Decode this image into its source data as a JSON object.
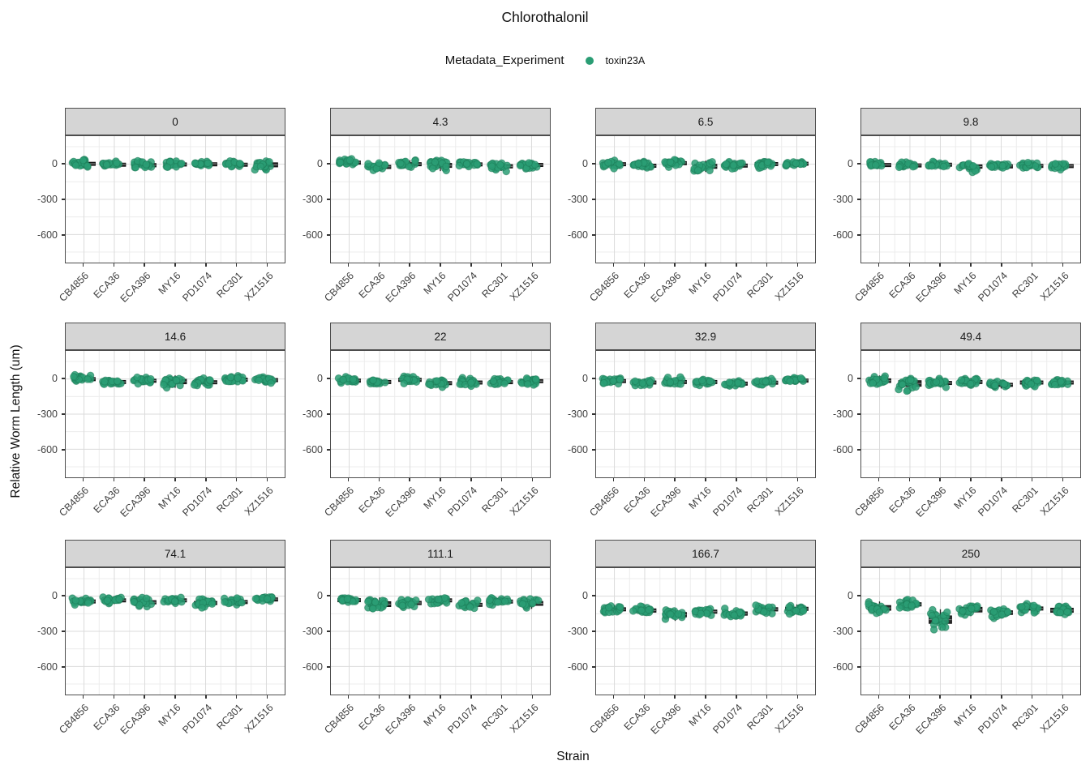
{
  "title": "Chlorothalonil",
  "legend": {
    "title": "Metadata_Experiment",
    "items": [
      {
        "label": "toxin23A",
        "color": "#2a9d74"
      }
    ]
  },
  "x_axis": {
    "title": "Strain",
    "categories": [
      "CB4856",
      "ECA36",
      "ECA396",
      "MY16",
      "PD1074",
      "RC301",
      "XZ1516"
    ]
  },
  "y_axis": {
    "title": "Relative Worm Length (um)",
    "ticks": [
      0,
      -300,
      -600
    ],
    "minor_ticks": [
      150,
      -150,
      -450,
      -750
    ],
    "range": [
      -840,
      240
    ]
  },
  "style": {
    "point_color": "#2a9d74",
    "point_stroke": "#1b7a56",
    "box_color": "#2b2b2b",
    "box_stroke": "#111111",
    "median_color": "#8a8a8a",
    "strip_bg": "#d5d5d5",
    "strip_border": "#4d4d4d",
    "panel_border": "#4d4d4d",
    "grid_major": "#dbdbdb",
    "grid_minor": "#ececec",
    "axis_text": "#404040"
  },
  "chart_data": {
    "type": "boxplot-jitter",
    "facet_by": "dose",
    "points_per_group": 20,
    "strains": [
      "CB4856",
      "ECA36",
      "ECA396",
      "MY16",
      "PD1074",
      "RC301",
      "XZ1516"
    ],
    "facets": [
      {
        "label": "0",
        "medians": [
          5,
          0,
          -8,
          0,
          5,
          0,
          -5
        ],
        "spreads": [
          15,
          12,
          18,
          15,
          10,
          12,
          22
        ]
      },
      {
        "label": "4.3",
        "medians": [
          18,
          -22,
          2,
          -10,
          2,
          -18,
          -5
        ],
        "spreads": [
          12,
          16,
          15,
          22,
          13,
          18,
          16
        ]
      },
      {
        "label": "6.5",
        "medians": [
          2,
          -12,
          12,
          -18,
          -10,
          2,
          8
        ],
        "spreads": [
          15,
          16,
          13,
          22,
          15,
          16,
          12
        ]
      },
      {
        "label": "9.8",
        "medians": [
          -5,
          -6,
          0,
          -20,
          -14,
          -10,
          -14
        ],
        "spreads": [
          15,
          12,
          12,
          18,
          12,
          12,
          15
        ]
      },
      {
        "label": "14.6",
        "medians": [
          2,
          -24,
          -12,
          -22,
          -28,
          -6,
          -8
        ],
        "spreads": [
          13,
          15,
          13,
          24,
          17,
          17,
          15
        ]
      },
      {
        "label": "22",
        "medians": [
          -10,
          -24,
          -6,
          -34,
          -30,
          -24,
          -18
        ],
        "spreads": [
          13,
          15,
          15,
          15,
          17,
          13,
          17
        ]
      },
      {
        "label": "32.9",
        "medians": [
          -16,
          -28,
          -24,
          -24,
          -38,
          -28,
          -8
        ],
        "spreads": [
          15,
          15,
          15,
          15,
          15,
          13,
          10
        ]
      },
      {
        "label": "49.4",
        "medians": [
          -14,
          -38,
          -34,
          -24,
          -48,
          -30,
          -28
        ],
        "spreads": [
          20,
          30,
          17,
          15,
          15,
          17,
          15
        ]
      },
      {
        "label": "74.1",
        "medians": [
          -45,
          -34,
          -52,
          -34,
          -58,
          -48,
          -24
        ],
        "spreads": [
          17,
          15,
          18,
          15,
          17,
          15,
          12
        ]
      },
      {
        "label": "111.1",
        "medians": [
          -30,
          -68,
          -58,
          -34,
          -72,
          -44,
          -62
        ],
        "spreads": [
          12,
          26,
          18,
          15,
          15,
          15,
          21
        ]
      },
      {
        "label": "166.7",
        "medians": [
          -112,
          -122,
          -158,
          -132,
          -148,
          -112,
          -108
        ],
        "spreads": [
          17,
          18,
          24,
          17,
          18,
          18,
          17
        ]
      },
      {
        "label": "250",
        "medians": [
          -100,
          -70,
          -200,
          -115,
          -140,
          -105,
          -120
        ],
        "spreads": [
          25,
          18,
          40,
          25,
          20,
          17,
          22
        ]
      }
    ]
  }
}
